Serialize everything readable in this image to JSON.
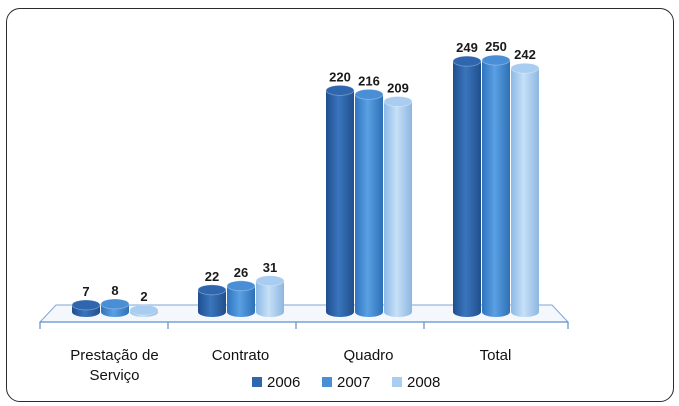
{
  "chart_data": {
    "type": "bar",
    "title": "",
    "xlabel": "",
    "ylabel": "",
    "ylim": [
      0,
      270
    ],
    "grid": false,
    "legend_position": "bottom",
    "categories": [
      [
        "Prestação de",
        "Serviço"
      ],
      [
        "Contrato"
      ],
      [
        "Quadro"
      ],
      [
        "Total"
      ]
    ],
    "series": [
      {
        "name": "2006",
        "values": [
          7,
          22,
          220,
          249
        ],
        "color": "#2f66ad"
      },
      {
        "name": "2007",
        "values": [
          8,
          26,
          216,
          250
        ],
        "color": "#4a8fd6"
      },
      {
        "name": "2008",
        "values": [
          2,
          31,
          209,
          242
        ],
        "color": "#a9cdf0"
      }
    ]
  }
}
